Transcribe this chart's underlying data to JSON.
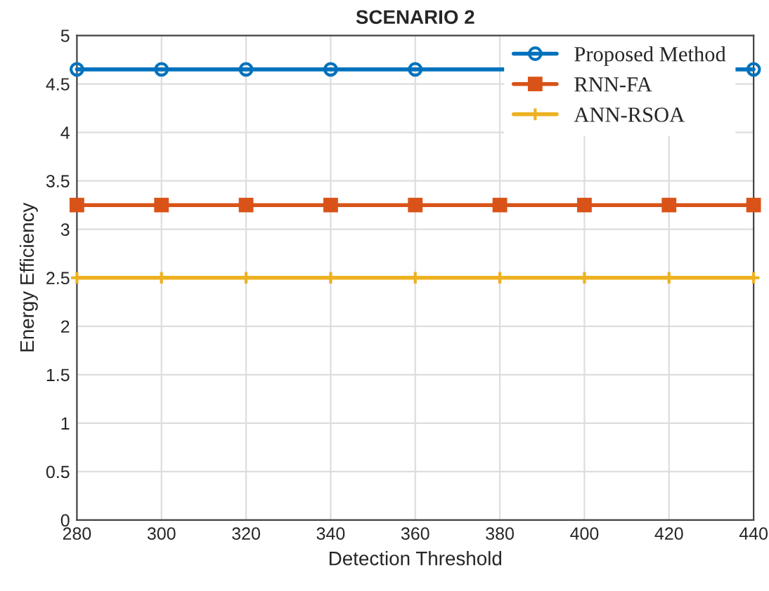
{
  "chart_data": {
    "type": "line",
    "title": "SCENARIO 2",
    "xlabel": "Detection Threshold",
    "ylabel": "Energy Efficiency",
    "x": [
      280,
      300,
      320,
      340,
      360,
      380,
      400,
      420,
      440
    ],
    "series": [
      {
        "name": "Proposed Method",
        "color": "#0072bd",
        "marker": "circle",
        "values": [
          4.65,
          4.65,
          4.65,
          4.65,
          4.65,
          null,
          null,
          null,
          4.65
        ]
      },
      {
        "name": "RNN-FA",
        "color": "#d95319",
        "marker": "square",
        "values": [
          3.25,
          3.25,
          3.25,
          3.25,
          3.25,
          3.25,
          3.25,
          3.25,
          3.25
        ]
      },
      {
        "name": "ANN-RSOA",
        "color": "#edb120",
        "marker": "cross",
        "values": [
          2.5,
          2.5,
          2.5,
          2.5,
          2.5,
          2.5,
          2.5,
          2.5,
          2.5
        ]
      }
    ],
    "xlim": [
      280,
      440
    ],
    "xticks": [
      280,
      300,
      320,
      340,
      360,
      380,
      400,
      420,
      440
    ],
    "ylim": [
      0,
      5
    ],
    "yticks": [
      0,
      0.5,
      1,
      1.5,
      2,
      2.5,
      3,
      3.5,
      4,
      4.5,
      5
    ],
    "grid": true,
    "legend": "top right",
    "line_style": "solid"
  }
}
